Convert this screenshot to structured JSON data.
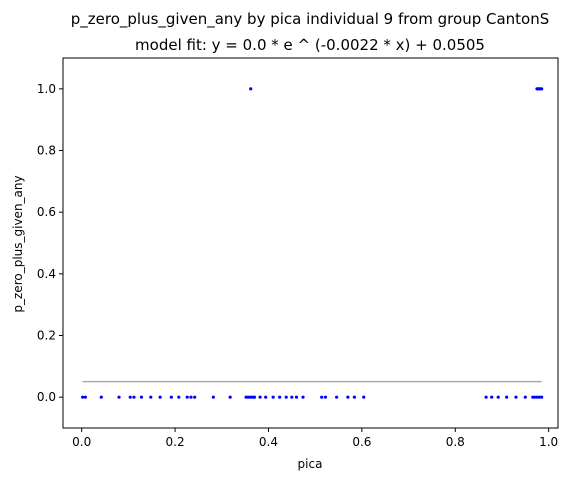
{
  "chart_data": {
    "type": "scatter",
    "title": "p_zero_plus_given_any by pica individual 9 from group CantonS",
    "subtitle": "model fit: y = 0.0 * e ^ (-0.0022 * x) + 0.0505",
    "xlabel": "pica",
    "ylabel": "p_zero_plus_given_any",
    "xlim": [
      -0.04,
      1.02
    ],
    "ylim": [
      -0.1,
      1.1
    ],
    "x_ticks": [
      0.0,
      0.2,
      0.4,
      0.6,
      0.8,
      1.0
    ],
    "x_tick_labels": [
      "0.0",
      "0.2",
      "0.4",
      "0.6",
      "0.8",
      "1.0"
    ],
    "y_ticks": [
      0.0,
      0.2,
      0.4,
      0.6,
      0.8,
      1.0
    ],
    "y_tick_labels": [
      "0.0",
      "0.2",
      "0.4",
      "0.6",
      "0.8",
      "1.0"
    ],
    "grid": false,
    "point_color": "#0000ff",
    "fit_color": "#aaaaaa",
    "points": {
      "x": [
        0.002,
        0.008,
        0.042,
        0.08,
        0.104,
        0.112,
        0.128,
        0.148,
        0.168,
        0.192,
        0.208,
        0.226,
        0.234,
        0.242,
        0.282,
        0.318,
        0.352,
        0.356,
        0.36,
        0.364,
        0.368,
        0.37,
        0.382,
        0.394,
        0.41,
        0.424,
        0.438,
        0.45,
        0.46,
        0.474,
        0.514,
        0.522,
        0.546,
        0.57,
        0.584,
        0.604,
        0.866,
        0.878,
        0.892,
        0.91,
        0.93,
        0.95,
        0.966,
        0.97,
        0.975,
        0.98,
        0.985,
        0.362,
        0.975,
        0.978,
        0.98,
        0.982,
        0.985
      ],
      "y": [
        0,
        0,
        0,
        0,
        0,
        0,
        0,
        0,
        0,
        0,
        0,
        0,
        0,
        0,
        0,
        0,
        0,
        0,
        0,
        0,
        0,
        0,
        0,
        0,
        0,
        0,
        0,
        0,
        0,
        0,
        0,
        0,
        0,
        0,
        0,
        0,
        0,
        0,
        0,
        0,
        0,
        0,
        0,
        0,
        0,
        0,
        0,
        1,
        1,
        1,
        1,
        1,
        1
      ]
    },
    "fit_line": {
      "x": [
        0.002,
        0.985
      ],
      "y": [
        0.0505,
        0.0505
      ]
    }
  }
}
